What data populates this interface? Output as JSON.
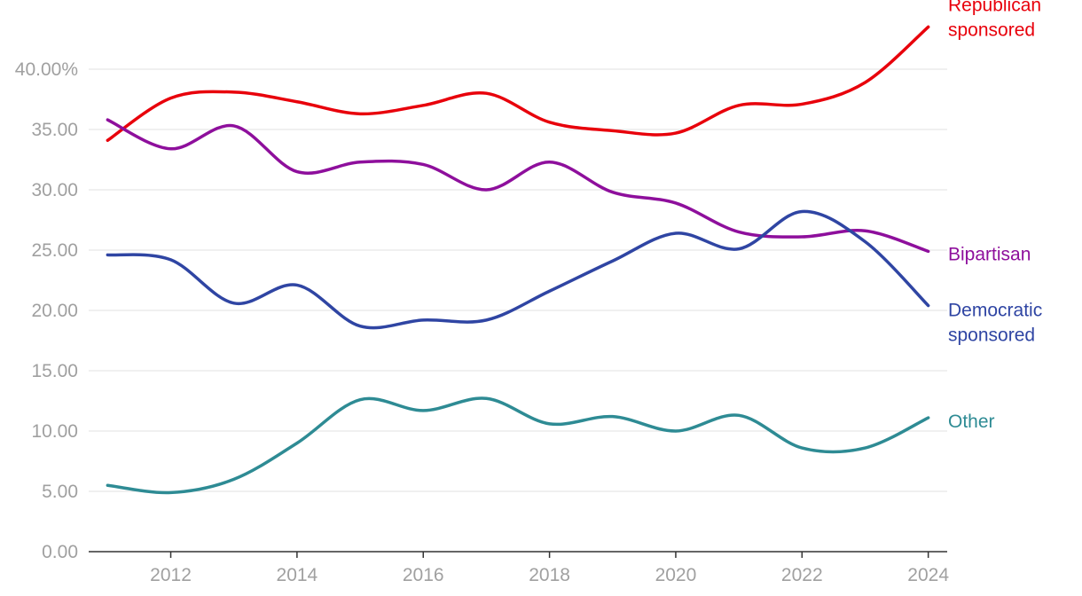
{
  "chart_data": {
    "type": "line",
    "title": "",
    "xlabel": "",
    "ylabel": "",
    "x": [
      2011,
      2012,
      2013,
      2014,
      2015,
      2016,
      2017,
      2018,
      2019,
      2020,
      2021,
      2022,
      2023,
      2024
    ],
    "xlim": [
      2010.7,
      2024.3
    ],
    "ylim": [
      0,
      45
    ],
    "grid": true,
    "x_ticks": [
      {
        "value": 2012,
        "label": "2012"
      },
      {
        "value": 2014,
        "label": "2014"
      },
      {
        "value": 2016,
        "label": "2016"
      },
      {
        "value": 2018,
        "label": "2018"
      },
      {
        "value": 2020,
        "label": "2020"
      },
      {
        "value": 2022,
        "label": "2022"
      },
      {
        "value": 2024,
        "label": "2024"
      }
    ],
    "y_ticks": [
      {
        "value": 0,
        "label": "0.00"
      },
      {
        "value": 5,
        "label": "5.00"
      },
      {
        "value": 10,
        "label": "10.00"
      },
      {
        "value": 15,
        "label": "15.00"
      },
      {
        "value": 20,
        "label": "20.00"
      },
      {
        "value": 25,
        "label": "25.00"
      },
      {
        "value": 30,
        "label": "30.00"
      },
      {
        "value": 35,
        "label": "35.00"
      },
      {
        "value": 40,
        "label": "40.00%"
      }
    ],
    "series": [
      {
        "key": "republican",
        "name": "Republican sponsored",
        "label_lines": [
          "Republican",
          "sponsored"
        ],
        "color": "#e8000b",
        "values": [
          34.1,
          37.6,
          38.1,
          37.3,
          36.3,
          37.0,
          38.0,
          35.6,
          34.9,
          34.7,
          37.0,
          37.1,
          38.9,
          43.5
        ]
      },
      {
        "key": "bipartisan",
        "name": "Bipartisan",
        "label_lines": [
          "Bipartisan"
        ],
        "color": "#8e0f9c",
        "values": [
          35.8,
          33.4,
          35.3,
          31.5,
          32.3,
          32.1,
          30.0,
          32.3,
          29.8,
          28.9,
          26.5,
          26.1,
          26.6,
          24.9
        ]
      },
      {
        "key": "democratic",
        "name": "Democratic sponsored",
        "label_lines": [
          "Democratic",
          "sponsored"
        ],
        "color": "#2f45a3",
        "values": [
          24.6,
          24.2,
          20.6,
          22.1,
          18.7,
          19.2,
          19.2,
          21.6,
          24.1,
          26.4,
          25.1,
          28.2,
          25.7,
          20.4
        ]
      },
      {
        "key": "other",
        "name": "Other",
        "label_lines": [
          "Other"
        ],
        "color": "#2e8b94",
        "values": [
          5.5,
          4.9,
          6.0,
          9.0,
          12.6,
          11.7,
          12.7,
          10.6,
          11.2,
          10.0,
          11.3,
          8.6,
          8.6,
          11.1
        ]
      }
    ]
  }
}
